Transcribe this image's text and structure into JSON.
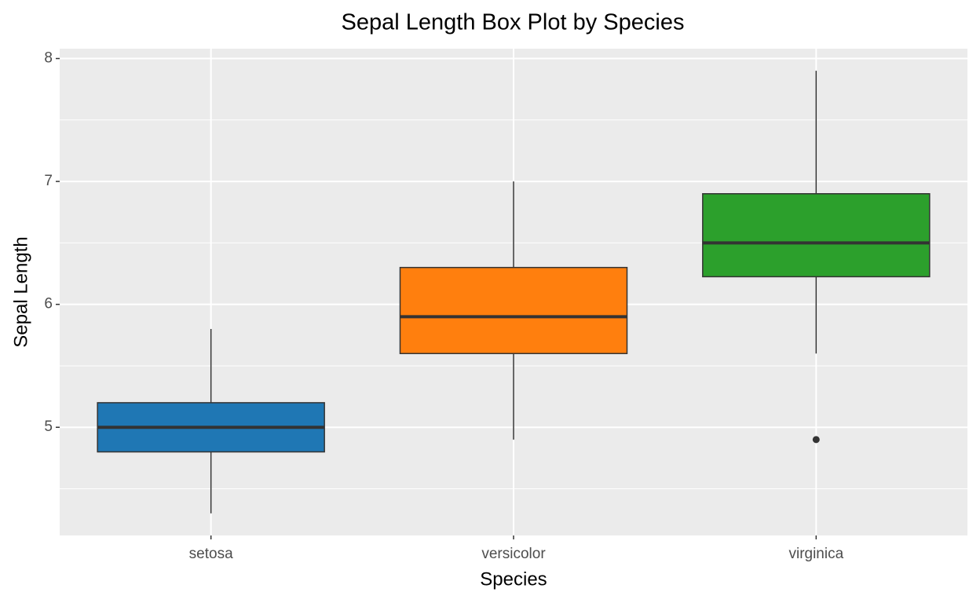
{
  "chart_data": {
    "type": "box",
    "title": "Sepal Length Box Plot by Species",
    "x_label": "Species",
    "y_label": "Sepal Length",
    "categories": [
      "setosa",
      "versicolor",
      "virginica"
    ],
    "colors": [
      "#1f77b4",
      "#ff7f0e",
      "#2ca02c"
    ],
    "whisker_low": [
      4.3,
      4.9,
      5.6
    ],
    "q1": [
      4.8,
      5.6,
      6.225
    ],
    "median": [
      5.0,
      5.9,
      6.5
    ],
    "q3": [
      5.2,
      6.3,
      6.9
    ],
    "whisker_high": [
      5.8,
      7.0,
      7.9
    ],
    "outliers": [
      [],
      [],
      [
        4.9
      ]
    ],
    "ylim": [
      4.12,
      8.08
    ],
    "yticks": [
      5,
      6,
      7,
      8
    ],
    "minor_yticks": [
      4.5,
      5.5,
      6.5,
      7.5
    ],
    "grid": true,
    "panel_background": "#ebebeb"
  }
}
